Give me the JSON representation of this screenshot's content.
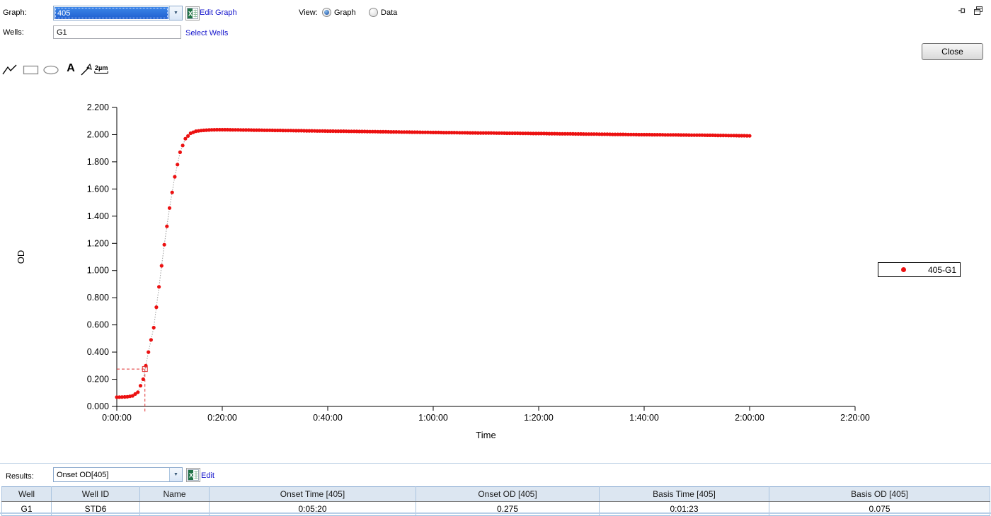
{
  "window": {
    "close_label": "Close"
  },
  "header": {
    "graph_label": "Graph:",
    "graph_value": "405",
    "edit_graph_label": "Edit Graph",
    "wells_label": "Wells:",
    "wells_value": "G1",
    "select_wells_label": "Select Wells",
    "view_label": "View:",
    "view_options": [
      {
        "label": "Graph",
        "selected": true
      },
      {
        "label": "Data",
        "selected": false
      }
    ]
  },
  "toolbar": {
    "tools": [
      "line-tool",
      "rectangle-tool",
      "ellipse-tool",
      "text-tool",
      "arrow-tool",
      "scale-bar-tool"
    ],
    "scale_bar_label": "2µm"
  },
  "results_bar": {
    "label": "Results:",
    "value": "Onset OD[405]",
    "edit_label": "Edit"
  },
  "legend": {
    "series_label": "405-G1"
  },
  "table": {
    "columns": [
      "Well",
      "Well ID",
      "Name",
      "Onset Time [405]",
      "Onset OD [405]",
      "Basis Time [405]",
      "Basis OD [405]"
    ],
    "rows": [
      [
        "G1",
        "STD6",
        "",
        "0:05:20",
        "0.275",
        "0:01:23",
        "0.075"
      ]
    ]
  },
  "colors": {
    "link": "#1414cc",
    "selection_blue": "#2e72d2",
    "series_red": "#ec1111",
    "dashed_red": "#e03030",
    "connector_gray": "#9a9a9a",
    "table_header_bg": "#dce6f1",
    "table_border": "#aac4e0",
    "excel_green": "#217346"
  },
  "chart_data": {
    "type": "scatter",
    "title": "",
    "xlabel": "Time",
    "ylabel": "OD",
    "xlim_sec": [
      0,
      8400
    ],
    "ylim": [
      0,
      2.2
    ],
    "x_ticks_sec": [
      0,
      1200,
      2400,
      3600,
      4800,
      6000,
      7200,
      8400
    ],
    "x_tick_labels": [
      "0:00:00",
      "0:20:00",
      "0:40:00",
      "1:00:00",
      "1:20:00",
      "1:40:00",
      "2:00:00",
      "2:20:00"
    ],
    "y_ticks": [
      0,
      0.2,
      0.4,
      0.6,
      0.8,
      1.0,
      1.2,
      1.4,
      1.6,
      1.8,
      2.0,
      2.2
    ],
    "y_tick_labels": [
      "0.000",
      "0.200",
      "0.400",
      "0.600",
      "0.800",
      "1.000",
      "1.200",
      "1.400",
      "1.600",
      "1.800",
      "2.000",
      "2.200"
    ],
    "grid": false,
    "legend_position": "right",
    "sample_interval_sec": 60,
    "series": [
      {
        "name": "405-G1",
        "color": "#ec1111",
        "od_values": [
          0.068,
          0.069,
          0.071,
          0.078,
          0.105,
          0.2,
          0.4,
          0.58,
          0.88,
          1.19,
          1.46,
          1.69,
          1.87,
          1.97,
          2.01,
          2.025,
          2.03,
          2.033,
          2.035,
          2.036,
          2.036,
          2.036,
          2.035,
          2.035,
          2.034,
          2.034,
          2.033,
          2.033,
          2.032,
          2.032,
          2.031,
          2.031,
          2.03,
          2.03,
          2.029,
          2.029,
          2.028,
          2.028,
          2.027,
          2.027,
          2.026,
          2.026,
          2.025,
          2.025,
          2.024,
          2.024,
          2.023,
          2.023,
          2.022,
          2.022,
          2.021,
          2.021,
          2.02,
          2.02,
          2.019,
          2.019,
          2.018,
          2.018,
          2.017,
          2.017,
          2.016,
          2.016,
          2.015,
          2.015,
          2.015,
          2.014,
          2.014,
          2.013,
          2.013,
          2.012,
          2.012,
          2.012,
          2.011,
          2.011,
          2.01,
          2.01,
          2.01,
          2.009,
          2.009,
          2.008,
          2.008,
          2.008,
          2.007,
          2.007,
          2.006,
          2.006,
          2.006,
          2.005,
          2.005,
          2.004,
          2.004,
          2.004,
          2.003,
          2.003,
          2.002,
          2.002,
          2.002,
          2.001,
          2.001,
          2.0,
          2.0,
          2.0,
          1.999,
          1.999,
          1.998,
          1.998,
          1.998,
          1.997,
          1.997,
          1.996,
          1.996,
          1.996,
          1.995,
          1.995,
          1.994,
          1.994,
          1.993,
          1.993,
          1.992,
          1.992,
          1.991
        ]
      }
    ],
    "annotations": {
      "onset_time_sec": 320,
      "onset_od": 0.275,
      "basis_time_sec": 83,
      "basis_od": 0.075,
      "style": "dashed-red"
    }
  }
}
